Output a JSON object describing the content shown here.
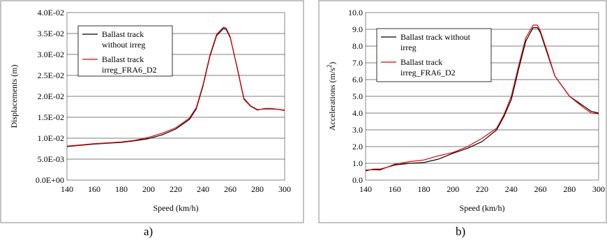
{
  "chart_data": [
    {
      "type": "line",
      "id": "a",
      "xlabel": "Speed (km/h)",
      "ylabel": "Displacements (m)",
      "xlim": [
        140,
        300
      ],
      "ylim": [
        0,
        0.04
      ],
      "x_ticks": [
        "140",
        "160",
        "180",
        "200",
        "220",
        "240",
        "260",
        "280",
        "300"
      ],
      "y_ticks": [
        "0.0E+00",
        "5.0E-03",
        "1.0E-02",
        "1.5E-02",
        "2.0E-02",
        "2.5E-02",
        "3.0E-02",
        "3.5E-02",
        "4.0E-02"
      ],
      "grid": "horizontal",
      "legend_placement": "top-left",
      "series": [
        {
          "name_lines": [
            "Ballast track",
            "without irreg"
          ],
          "color": "#000000",
          "x": [
            140,
            150,
            160,
            170,
            180,
            190,
            200,
            210,
            220,
            230,
            235,
            240,
            245,
            250,
            255,
            257,
            260,
            265,
            270,
            275,
            280,
            285,
            290,
            295,
            300
          ],
          "y": [
            0.008,
            0.0083,
            0.0086,
            0.0088,
            0.009,
            0.0094,
            0.0099,
            0.0108,
            0.0122,
            0.0145,
            0.017,
            0.0225,
            0.0295,
            0.0345,
            0.0362,
            0.036,
            0.034,
            0.027,
            0.0195,
            0.0177,
            0.0168,
            0.017,
            0.017,
            0.0169,
            0.0167
          ]
        },
        {
          "name_lines": [
            "Ballast track",
            "irreg_FRA6_D2"
          ],
          "color": "#e00000",
          "x": [
            140,
            150,
            160,
            170,
            180,
            190,
            200,
            210,
            220,
            230,
            235,
            240,
            245,
            250,
            255,
            257,
            260,
            265,
            270,
            275,
            280,
            285,
            290,
            295,
            300
          ],
          "y": [
            0.0081,
            0.0084,
            0.0087,
            0.0089,
            0.0091,
            0.0095,
            0.0102,
            0.0112,
            0.0125,
            0.0148,
            0.0173,
            0.0228,
            0.0298,
            0.0348,
            0.0365,
            0.0363,
            0.0342,
            0.0268,
            0.0193,
            0.0176,
            0.0167,
            0.0171,
            0.0171,
            0.0169,
            0.0166
          ]
        }
      ],
      "caption": "a)"
    },
    {
      "type": "line",
      "id": "b",
      "xlabel": "Speed (km/h)",
      "ylabel": "Accelerations (m/s",
      "ylabel_sup": "2",
      "ylabel_close": ")",
      "xlim": [
        140,
        300
      ],
      "ylim": [
        0,
        10
      ],
      "x_ticks": [
        "140",
        "160",
        "180",
        "200",
        "220",
        "240",
        "260",
        "280",
        "300"
      ],
      "y_ticks": [
        "0.0",
        "1.0",
        "2.0",
        "3.0",
        "4.0",
        "5.0",
        "6.0",
        "7.0",
        "8.0",
        "9.0",
        "10.0"
      ],
      "grid": "horizontal",
      "legend_placement": "top-left",
      "series": [
        {
          "name_lines": [
            "Ballast track without",
            "irreg"
          ],
          "color": "#000000",
          "x": [
            140,
            145,
            150,
            160,
            170,
            180,
            190,
            200,
            210,
            220,
            230,
            235,
            240,
            245,
            250,
            255,
            258,
            260,
            265,
            270,
            280,
            290,
            295,
            300
          ],
          "y": [
            0.55,
            0.65,
            0.65,
            0.9,
            1.0,
            1.05,
            1.25,
            1.6,
            1.9,
            2.3,
            3.0,
            3.8,
            4.8,
            6.6,
            8.3,
            9.1,
            9.1,
            8.8,
            7.5,
            6.2,
            5.0,
            4.4,
            4.1,
            4.0
          ]
        },
        {
          "name_lines": [
            "Ballast track",
            "irreg_FRA6_D2"
          ],
          "color": "#e00000",
          "x": [
            140,
            145,
            150,
            160,
            170,
            180,
            190,
            200,
            210,
            220,
            230,
            235,
            240,
            245,
            250,
            255,
            258,
            260,
            265,
            270,
            280,
            290,
            295,
            300
          ],
          "y": [
            0.6,
            0.62,
            0.6,
            0.95,
            1.1,
            1.2,
            1.45,
            1.65,
            2.0,
            2.5,
            3.1,
            3.9,
            5.0,
            6.8,
            8.5,
            9.25,
            9.25,
            8.9,
            7.6,
            6.2,
            5.0,
            4.3,
            4.0,
            3.95
          ]
        }
      ],
      "caption": "b)"
    }
  ]
}
